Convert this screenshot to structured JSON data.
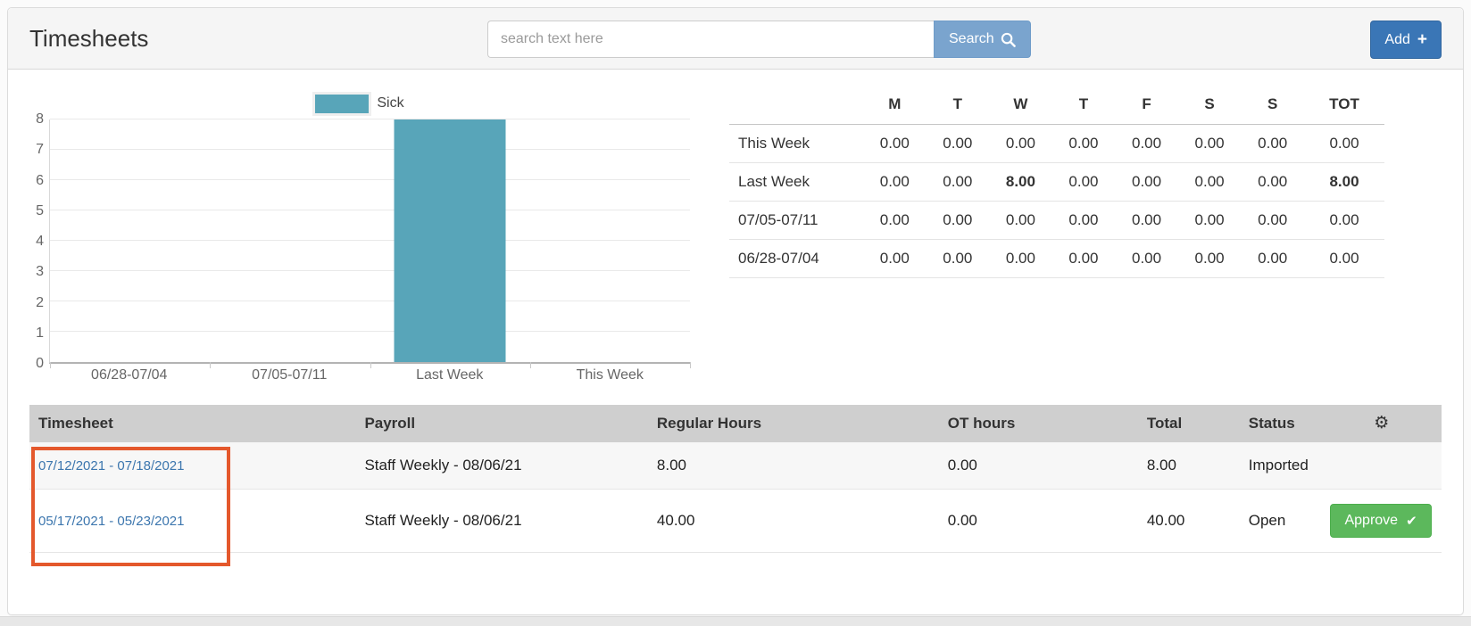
{
  "page": {
    "title": "Timesheets"
  },
  "header": {
    "search": {
      "placeholder": "search text here",
      "value": "",
      "button_label": "Search"
    },
    "add_button_label": "Add"
  },
  "chart_data": {
    "type": "bar",
    "categories": [
      "06/28-07/04",
      "07/05-07/11",
      "Last Week",
      "This Week"
    ],
    "series": [
      {
        "name": "Sick",
        "values": [
          0,
          0,
          8,
          0
        ]
      }
    ],
    "title": "",
    "xlabel": "",
    "ylabel": "",
    "ylim": [
      0,
      8
    ],
    "yticks": [
      0,
      1,
      2,
      3,
      4,
      5,
      6,
      7,
      8
    ],
    "grid": true,
    "legend_position": "top"
  },
  "week_summary": {
    "columns": [
      "M",
      "T",
      "W",
      "T",
      "F",
      "S",
      "S",
      "TOT"
    ],
    "rows": [
      {
        "label": "This Week",
        "values": [
          "0.00",
          "0.00",
          "0.00",
          "0.00",
          "0.00",
          "0.00",
          "0.00",
          "0.00"
        ],
        "bold": [
          false,
          false,
          false,
          false,
          false,
          false,
          false,
          false
        ]
      },
      {
        "label": "Last Week",
        "values": [
          "0.00",
          "0.00",
          "8.00",
          "0.00",
          "0.00",
          "0.00",
          "0.00",
          "8.00"
        ],
        "bold": [
          false,
          false,
          true,
          false,
          false,
          false,
          false,
          true
        ]
      },
      {
        "label": "07/05-07/11",
        "values": [
          "0.00",
          "0.00",
          "0.00",
          "0.00",
          "0.00",
          "0.00",
          "0.00",
          "0.00"
        ],
        "bold": [
          false,
          false,
          false,
          false,
          false,
          false,
          false,
          false
        ]
      },
      {
        "label": "06/28-07/04",
        "values": [
          "0.00",
          "0.00",
          "0.00",
          "0.00",
          "0.00",
          "0.00",
          "0.00",
          "0.00"
        ],
        "bold": [
          false,
          false,
          false,
          false,
          false,
          false,
          false,
          false
        ]
      }
    ]
  },
  "timesheet_table": {
    "columns": [
      "Timesheet",
      "Payroll",
      "Regular Hours",
      "OT hours",
      "Total",
      "Status"
    ],
    "settings_icon": "gear",
    "rows": [
      {
        "timesheet": "07/12/2021 - 07/18/2021",
        "payroll": "Staff Weekly - 08/06/21",
        "regular_hours": "8.00",
        "ot_hours": "0.00",
        "total": "8.00",
        "status": "Imported",
        "action_label": ""
      },
      {
        "timesheet": "05/17/2021 - 05/23/2021",
        "payroll": "Staff Weekly - 08/06/21",
        "regular_hours": "40.00",
        "ot_hours": "0.00",
        "total": "40.00",
        "status": "Open",
        "action_label": "Approve"
      }
    ]
  },
  "colors": {
    "bar": "#58a5b9",
    "search_button": "#7aa4ce",
    "add_button": "#3a76b6",
    "approve_button": "#5cb85c",
    "link": "#3c76ae",
    "table_header_bg": "#cfcfcf",
    "annotation_border": "#e4582c"
  }
}
